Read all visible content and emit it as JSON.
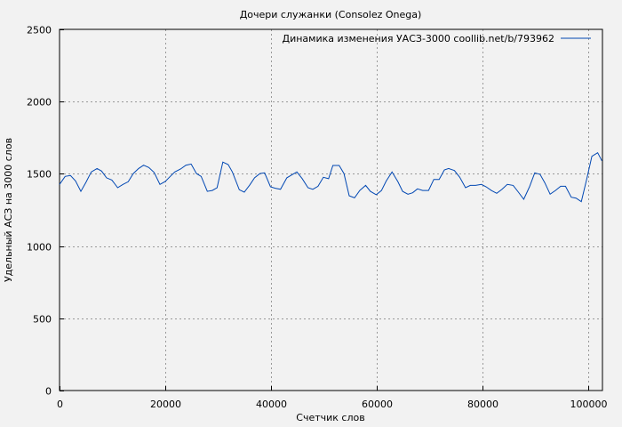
{
  "chart_data": {
    "type": "line",
    "title": "Дочери служанки (Consolez Onega)",
    "xlabel": "Счетчик слов",
    "ylabel": "Удельный АСЗ на 3000 слов",
    "xlim": [
      0,
      102700
    ],
    "ylim": [
      0,
      2500
    ],
    "xticks": [
      0,
      20000,
      40000,
      60000,
      80000,
      100000
    ],
    "yticks": [
      0,
      500,
      1000,
      1500,
      2000,
      2500
    ],
    "grid": true,
    "legend": "top-right",
    "series": [
      {
        "name": "Динамика изменения УАСЗ-3000 coollib.net/b/793962",
        "color": "#0047b3",
        "x": [
          0,
          1060,
          2070,
          3030,
          4030,
          5000,
          6000,
          7100,
          7950,
          8900,
          9900,
          11000,
          12000,
          13000,
          13950,
          14960,
          15900,
          16900,
          17900,
          19000,
          20000,
          20950,
          21800,
          22900,
          23900,
          24900,
          25900,
          26800,
          27950,
          28900,
          29800,
          30900,
          31900,
          32700,
          34000,
          34950,
          35950,
          36900,
          37900,
          38800,
          39900,
          40800,
          41800,
          43000,
          43900,
          44900,
          45900,
          47000,
          47900,
          48900,
          49900,
          50900,
          51700,
          52900,
          53800,
          54800,
          55800,
          56800,
          57900,
          58800,
          59900,
          60900,
          61800,
          62900,
          64000,
          64900,
          65900,
          66800,
          67700,
          68700,
          69800,
          70800,
          71800,
          72800,
          73600,
          74700,
          75700,
          76800,
          77700,
          78700,
          79800,
          80700,
          81700,
          82700,
          83700,
          84700,
          85800,
          86800,
          87800,
          88900,
          89900,
          90900,
          91800,
          92800,
          93800,
          94800,
          95700,
          96800,
          97700,
          98700,
          99700,
          100700,
          101800,
          102600
        ],
        "y": [
          1427,
          1482,
          1488,
          1451,
          1379,
          1441,
          1513,
          1537,
          1519,
          1472,
          1457,
          1404,
          1427,
          1445,
          1502,
          1537,
          1560,
          1544,
          1509,
          1427,
          1447,
          1482,
          1513,
          1533,
          1560,
          1568,
          1502,
          1482,
          1379,
          1385,
          1404,
          1581,
          1564,
          1513,
          1390,
          1373,
          1421,
          1472,
          1502,
          1507,
          1410,
          1400,
          1393,
          1472,
          1492,
          1513,
          1467,
          1404,
          1393,
          1414,
          1476,
          1466,
          1558,
          1558,
          1502,
          1348,
          1334,
          1385,
          1420,
          1379,
          1355,
          1384,
          1451,
          1513,
          1445,
          1379,
          1359,
          1369,
          1396,
          1385,
          1385,
          1461,
          1461,
          1527,
          1537,
          1523,
          1476,
          1404,
          1420,
          1420,
          1427,
          1410,
          1384,
          1365,
          1393,
          1427,
          1420,
          1373,
          1324,
          1410,
          1507,
          1496,
          1437,
          1359,
          1385,
          1414,
          1414,
          1338,
          1332,
          1307,
          1461,
          1621,
          1646,
          1590
        ]
      }
    ]
  }
}
